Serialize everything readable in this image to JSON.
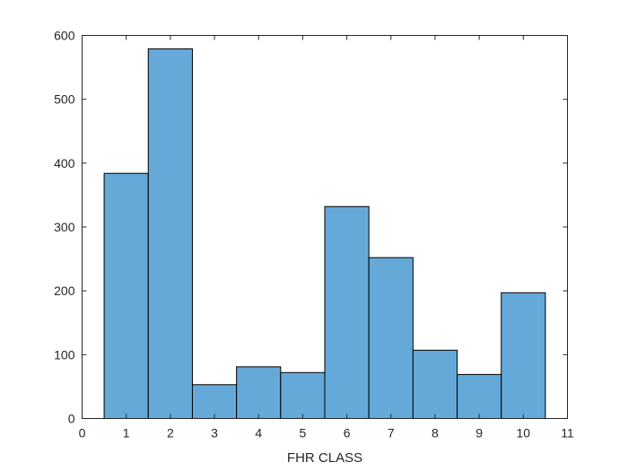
{
  "chart_data": {
    "type": "bar",
    "xlabel": "FHR CLASS",
    "ylabel": "",
    "title": "",
    "categories": [
      1,
      2,
      3,
      4,
      5,
      6,
      7,
      8,
      9,
      10
    ],
    "values": [
      384,
      579,
      53,
      81,
      72,
      332,
      252,
      107,
      69,
      197
    ],
    "xlim": [
      0,
      11
    ],
    "ylim": [
      0,
      600
    ],
    "xticks": [
      "0",
      "1",
      "2",
      "3",
      "4",
      "5",
      "6",
      "7",
      "8",
      "9",
      "10",
      "11"
    ],
    "yticks": [
      "0",
      "100",
      "200",
      "300",
      "400",
      "500",
      "600"
    ],
    "bar_color": "#65a9d8",
    "bar_edge_color": "#000000",
    "grid": false
  }
}
